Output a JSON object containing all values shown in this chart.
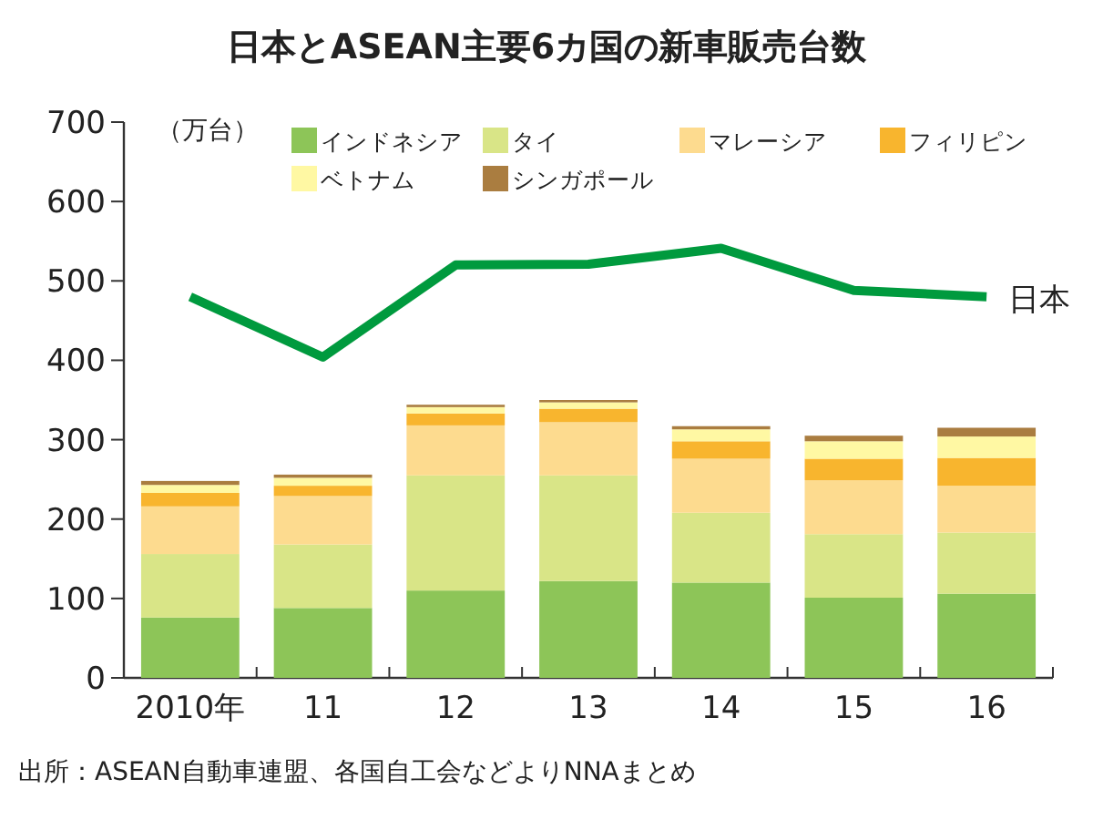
{
  "chart_data": {
    "type": "bar",
    "stacked": true,
    "title": "日本とASEAN主要6カ国の新車販売台数",
    "ylabel": "（万台）",
    "categories": [
      "2010年",
      "11",
      "12",
      "13",
      "14",
      "15",
      "16"
    ],
    "series": [
      {
        "name": "インドネシア",
        "color": "#8dc558",
        "values": [
          76,
          88,
          110,
          122,
          120,
          101,
          106
        ]
      },
      {
        "name": "タイ",
        "color": "#d9e587",
        "values": [
          80,
          80,
          145,
          133,
          88,
          80,
          77
        ]
      },
      {
        "name": "マレーシア",
        "color": "#fddb8f",
        "values": [
          60,
          61,
          63,
          67,
          68,
          68,
          59
        ]
      },
      {
        "name": "フィリピン",
        "color": "#f8b52e",
        "values": [
          17,
          13,
          15,
          17,
          22,
          27,
          35
        ]
      },
      {
        "name": "ベトナム",
        "color": "#fff8a3",
        "values": [
          10,
          10,
          8,
          8,
          15,
          22,
          27
        ]
      },
      {
        "name": "シンガポール",
        "color": "#aa7d40",
        "values": [
          5,
          4,
          3,
          3,
          4,
          7,
          11
        ]
      },
      {
        "type": "line",
        "color": "#009a3e",
        "values": [
          480,
          404,
          520,
          521,
          541,
          488,
          480
        ]
      }
    ],
    "ylim": [
      0,
      700
    ],
    "yticks": [
      0,
      100,
      200,
      300,
      400,
      500,
      600,
      700
    ],
    "legend": "top",
    "grid": false,
    "annotations": [
      {
        "text": "日本",
        "x": "16",
        "y": 480
      },
      "出所：ASEAN自動車連盟、各国自工会などよりNNAまとめ"
    ]
  }
}
